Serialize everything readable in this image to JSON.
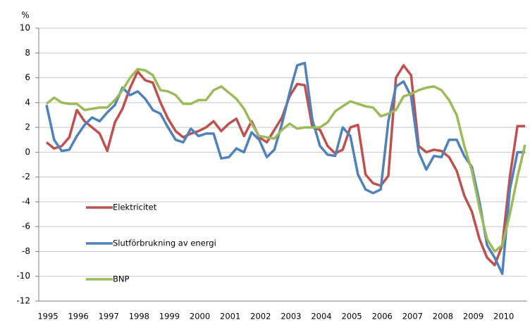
{
  "chart_data": {
    "type": "line",
    "y_label": "%",
    "categories": [
      "1995",
      null,
      null,
      null,
      "1996",
      null,
      null,
      null,
      "1997",
      null,
      null,
      null,
      "1998",
      null,
      null,
      null,
      "1999",
      null,
      null,
      null,
      "2000",
      null,
      null,
      null,
      "2001",
      null,
      null,
      null,
      "2002",
      null,
      null,
      null,
      "2003",
      null,
      null,
      null,
      "2004",
      null,
      null,
      null,
      "2005",
      null,
      null,
      null,
      "2006",
      null,
      null,
      null,
      "2007",
      null,
      null,
      null,
      "2008",
      null,
      null,
      null,
      "2009",
      null,
      null,
      null,
      "2010",
      null,
      null,
      null
    ],
    "series": [
      {
        "name": "Elektricitet",
        "color": "#c0504d",
        "values": [
          0.8,
          0.3,
          0.5,
          1.2,
          3.4,
          2.5,
          2.0,
          1.5,
          0.1,
          2.4,
          3.5,
          5.2,
          6.5,
          5.8,
          5.6,
          4.0,
          2.7,
          1.7,
          1.2,
          1.5,
          1.7,
          2.0,
          2.5,
          1.7,
          2.3,
          2.7,
          1.3,
          2.5,
          1.2,
          0.8,
          1.8,
          2.8,
          4.5,
          5.5,
          5.4,
          2.0,
          1.8,
          0.5,
          -0.1,
          0.2,
          2.0,
          2.2,
          -1.8,
          -2.5,
          -2.7,
          -1.9,
          6.0,
          7.0,
          6.2,
          0.5,
          0.0,
          0.2,
          0.1,
          -0.4,
          -1.5,
          -3.5,
          -4.8,
          -7.0,
          -8.5,
          -9.1,
          -7.5,
          -2.0,
          2.1,
          2.1
        ]
      },
      {
        "name": "Slutförbrukning av energi",
        "color": "#4f81bd",
        "values": [
          3.8,
          1.0,
          0.1,
          0.2,
          1.3,
          2.2,
          2.8,
          2.5,
          3.2,
          3.8,
          5.2,
          4.6,
          4.9,
          4.3,
          3.4,
          3.1,
          2.0,
          1.0,
          0.8,
          1.9,
          1.3,
          1.5,
          1.5,
          -0.5,
          -0.4,
          0.3,
          0.0,
          1.6,
          1.0,
          -0.4,
          0.2,
          2.3,
          4.8,
          7.0,
          7.2,
          2.6,
          0.5,
          -0.2,
          -0.3,
          2.0,
          1.3,
          -1.8,
          -3.0,
          -3.3,
          -3.0,
          2.5,
          5.3,
          5.7,
          4.5,
          0.0,
          -1.4,
          -0.3,
          -0.4,
          1.0,
          1.0,
          -0.3,
          -1.2,
          -4.0,
          -7.5,
          -8.5,
          -9.8,
          -3.0,
          0.0,
          0.0
        ]
      },
      {
        "name": "BNP",
        "color": "#9bbb59",
        "values": [
          3.9,
          4.4,
          4.0,
          3.9,
          3.9,
          3.4,
          3.5,
          3.6,
          3.6,
          4.2,
          5.0,
          6.0,
          6.7,
          6.6,
          6.2,
          5.0,
          4.9,
          4.6,
          3.9,
          3.9,
          4.2,
          4.2,
          5.0,
          5.3,
          4.8,
          4.3,
          3.5,
          2.3,
          1.3,
          1.2,
          1.1,
          1.8,
          2.3,
          1.9,
          2.0,
          2.0,
          2.0,
          2.4,
          3.3,
          3.7,
          4.1,
          3.9,
          3.7,
          3.6,
          2.9,
          3.1,
          3.4,
          4.5,
          4.7,
          5.0,
          5.2,
          5.3,
          5.0,
          4.2,
          3.0,
          0.5,
          -1.5,
          -4.5,
          -7.0,
          -8.0,
          -7.5,
          -5.0,
          -2.0,
          0.6
        ]
      }
    ],
    "ylim": [
      -12,
      10
    ],
    "yticks": [
      -12,
      -10,
      -8,
      -6,
      -4,
      -2,
      0,
      2,
      4,
      6,
      8,
      10
    ],
    "grid": true
  }
}
